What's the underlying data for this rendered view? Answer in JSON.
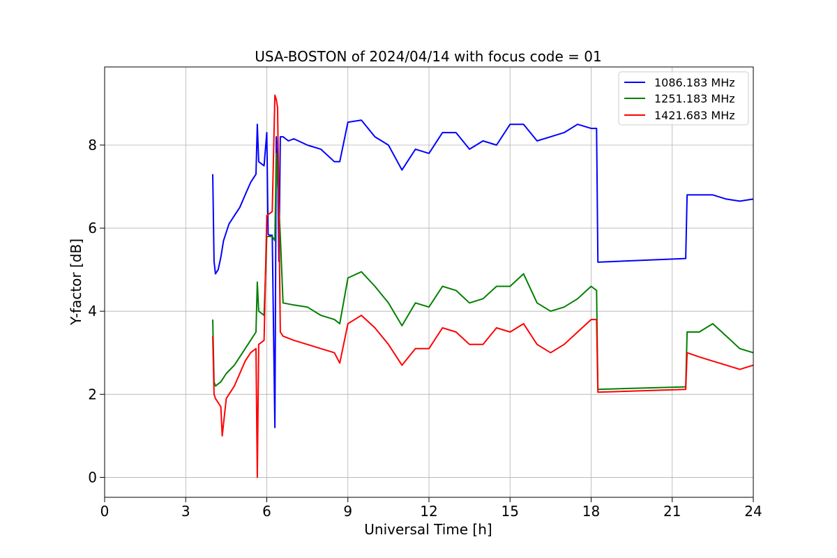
{
  "chart_data": {
    "type": "line",
    "title": "USA-BOSTON of 2024/04/14 with focus code = 01",
    "xlabel": "Universal Time [h]",
    "ylabel": "Y-factor [dB]",
    "xlim": [
      0,
      24
    ],
    "ylim": [
      -0.48,
      9.88
    ],
    "xticks": [
      0,
      3,
      6,
      9,
      12,
      15,
      18,
      21,
      24
    ],
    "yticks": [
      0,
      2,
      4,
      6,
      8
    ],
    "grid": true,
    "legend_position": "top-right",
    "series": [
      {
        "name": "1086.183 MHz",
        "color": "#0000ff",
        "x": [
          4.0,
          4.05,
          4.1,
          4.2,
          4.3,
          4.4,
          4.5,
          4.6,
          4.8,
          5.0,
          5.2,
          5.4,
          5.6,
          5.65,
          5.7,
          5.9,
          6.0,
          6.05,
          6.1,
          6.2,
          6.3,
          6.35,
          6.4,
          6.45,
          6.5,
          6.6,
          6.8,
          7.0,
          7.5,
          8.0,
          8.5,
          8.7,
          9.0,
          9.5,
          10.0,
          10.5,
          11.0,
          11.5,
          12.0,
          12.5,
          13.0,
          13.5,
          14.0,
          14.5,
          15.0,
          15.5,
          16.0,
          16.5,
          17.0,
          17.5,
          18.0,
          18.2,
          18.25,
          21.5,
          21.55,
          22.0,
          22.5,
          23.0,
          23.5,
          24.0
        ],
        "y": [
          7.3,
          5.2,
          4.9,
          5.0,
          5.3,
          5.7,
          5.9,
          6.1,
          6.3,
          6.5,
          6.8,
          7.1,
          7.3,
          8.5,
          7.6,
          7.5,
          8.3,
          5.85,
          5.83,
          5.83,
          1.2,
          8.2,
          7.5,
          5.2,
          8.2,
          8.2,
          8.1,
          8.15,
          8.0,
          7.9,
          7.6,
          7.6,
          8.55,
          8.6,
          8.2,
          8.0,
          7.4,
          7.9,
          7.8,
          8.3,
          8.3,
          7.9,
          8.1,
          8.0,
          8.5,
          8.5,
          8.1,
          8.2,
          8.3,
          8.5,
          8.4,
          8.4,
          5.18,
          5.27,
          6.8,
          6.8,
          6.8,
          6.7,
          6.65,
          6.7
        ]
      },
      {
        "name": "1251.183 MHz",
        "color": "#008000",
        "x": [
          4.0,
          4.05,
          4.1,
          4.3,
          4.5,
          4.8,
          5.0,
          5.2,
          5.4,
          5.6,
          5.65,
          5.7,
          5.9,
          6.0,
          6.2,
          6.3,
          6.35,
          6.4,
          6.5,
          6.6,
          7.0,
          7.5,
          8.0,
          8.5,
          8.7,
          9.0,
          9.5,
          10.0,
          10.5,
          11.0,
          11.5,
          12.0,
          12.5,
          13.0,
          13.5,
          14.0,
          14.5,
          15.0,
          15.5,
          16.0,
          16.5,
          17.0,
          17.5,
          18.0,
          18.2,
          18.25,
          21.5,
          21.55,
          22.0,
          22.5,
          23.0,
          23.5,
          24.0
        ],
        "y": [
          3.8,
          2.3,
          2.2,
          2.3,
          2.5,
          2.7,
          2.9,
          3.1,
          3.3,
          3.5,
          4.7,
          4.0,
          3.9,
          5.8,
          5.8,
          5.7,
          7.8,
          7.1,
          5.8,
          4.2,
          4.15,
          4.1,
          3.9,
          3.8,
          3.7,
          4.8,
          4.95,
          4.6,
          4.2,
          3.65,
          4.2,
          4.1,
          4.6,
          4.5,
          4.2,
          4.3,
          4.6,
          4.6,
          4.9,
          4.2,
          4.0,
          4.1,
          4.3,
          4.6,
          4.5,
          2.12,
          2.18,
          3.5,
          3.5,
          3.7,
          3.4,
          3.1,
          3.0
        ]
      },
      {
        "name": "1421.683 MHz",
        "color": "#ff0000",
        "x": [
          4.0,
          4.05,
          4.1,
          4.3,
          4.35,
          4.5,
          4.8,
          5.0,
          5.2,
          5.4,
          5.6,
          5.65,
          5.7,
          5.9,
          6.0,
          6.2,
          6.3,
          6.35,
          6.4,
          6.5,
          6.6,
          7.0,
          7.5,
          8.0,
          8.5,
          8.7,
          9.0,
          9.5,
          10.0,
          10.5,
          11.0,
          11.5,
          12.0,
          12.5,
          13.0,
          13.5,
          14.0,
          14.5,
          15.0,
          15.5,
          16.0,
          16.5,
          17.0,
          17.5,
          18.0,
          18.2,
          18.25,
          21.5,
          21.55,
          22.0,
          22.5,
          23.0,
          23.5,
          24.0
        ],
        "y": [
          3.4,
          2.0,
          1.9,
          1.7,
          1.0,
          1.9,
          2.2,
          2.5,
          2.8,
          3.0,
          3.1,
          0.0,
          3.2,
          3.3,
          6.3,
          6.4,
          9.2,
          9.1,
          8.9,
          3.5,
          3.4,
          3.3,
          3.2,
          3.1,
          3.0,
          2.75,
          3.7,
          3.9,
          3.6,
          3.2,
          2.7,
          3.1,
          3.1,
          3.6,
          3.5,
          3.2,
          3.2,
          3.6,
          3.5,
          3.7,
          3.2,
          3.0,
          3.2,
          3.5,
          3.8,
          3.8,
          2.05,
          2.12,
          3.0,
          2.9,
          2.8,
          2.7,
          2.6,
          2.7
        ]
      }
    ]
  }
}
